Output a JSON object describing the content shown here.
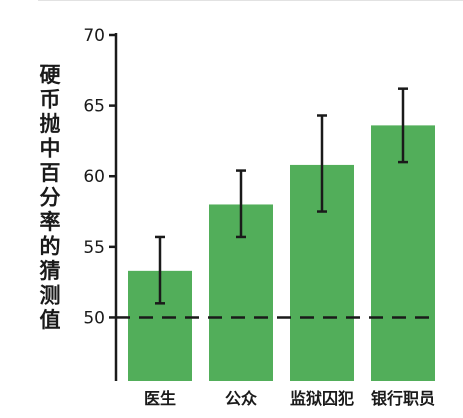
{
  "chart_data": {
    "type": "bar",
    "title": "",
    "xlabel": "",
    "ylabel": "硬币抛中百分率的猜测值",
    "categories": [
      "医生",
      "公众",
      "监狱囚犯",
      "银行职员"
    ],
    "series": [
      {
        "values": [
          53.3,
          58.0,
          60.8,
          63.6
        ],
        "error_low": [
          51.0,
          55.7,
          57.5,
          61.0
        ],
        "error_high": [
          55.7,
          60.4,
          64.3,
          66.2
        ]
      }
    ],
    "yticks": [
      50,
      55,
      60,
      65,
      70
    ],
    "ylim": [
      45.5,
      70
    ],
    "reference_line": 50,
    "grid": false,
    "legend": "none",
    "colors": {
      "bar": "#52ae5a",
      "error": "#1a1a1a",
      "axis": "#1a1a1a",
      "reference": "#1a1a1a"
    }
  }
}
